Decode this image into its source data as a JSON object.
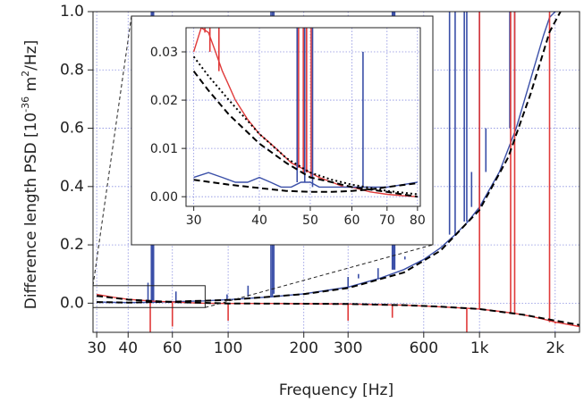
{
  "chart_data": [
    {
      "type": "line",
      "panel": "main",
      "xscale": "log",
      "xlim": [
        29,
        2500
      ],
      "ylim": [
        -0.1,
        1.0
      ],
      "xlabel": "Frequency [Hz]",
      "ylabel": {
        "prefix": "Difference length PSD [10",
        "exp1": "-36",
        "mid": " m",
        "exp2": "2",
        "suffix": "/Hz]"
      },
      "xticks": [
        {
          "value": 30,
          "label": "30"
        },
        {
          "value": 40,
          "label": "40"
        },
        {
          "value": 60,
          "label": "60"
        },
        {
          "value": 100,
          "label": "100"
        },
        {
          "value": 200,
          "label": "200"
        },
        {
          "value": 300,
          "label": "300"
        },
        {
          "value": 600,
          "label": "600"
        },
        {
          "value": 1000,
          "label": "1k"
        },
        {
          "value": 2000,
          "label": "2k"
        }
      ],
      "yticks": [
        {
          "value": 0.0,
          "label": "0.0"
        },
        {
          "value": 0.2,
          "label": "0.2"
        },
        {
          "value": 0.4,
          "label": "0.4"
        },
        {
          "value": 0.6,
          "label": "0.6"
        },
        {
          "value": 0.8,
          "label": "0.8"
        },
        {
          "value": 1.0,
          "label": "1.0"
        }
      ],
      "grid": true,
      "series": [
        {
          "color": "#3a4fa8",
          "style": "solid",
          "x": [
            30,
            35,
            40,
            50,
            60,
            80,
            100,
            150,
            200,
            300,
            400,
            500,
            600,
            700,
            800,
            900,
            1000,
            1200,
            1400,
            1600,
            1800,
            1900,
            2000
          ],
          "y": [
            0.004,
            0.003,
            0.002,
            0.003,
            0.005,
            0.008,
            0.012,
            0.022,
            0.032,
            0.055,
            0.085,
            0.115,
            0.15,
            0.19,
            0.235,
            0.28,
            0.33,
            0.45,
            0.6,
            0.77,
            0.92,
            0.98,
            1.0
          ],
          "spikes": [
            {
              "x": 48,
              "y": 0.07
            },
            {
              "x": 49.5,
              "y": 1.0
            },
            {
              "x": 50,
              "y": 1.0
            },
            {
              "x": 50.5,
              "y": 1.0
            },
            {
              "x": 62,
              "y": 0.04
            },
            {
              "x": 99,
              "y": 0.03
            },
            {
              "x": 120,
              "y": 0.06
            },
            {
              "x": 148,
              "y": 1.0
            },
            {
              "x": 150,
              "y": 1.0
            },
            {
              "x": 152,
              "y": 1.0
            },
            {
              "x": 300,
              "y": 0.09
            },
            {
              "x": 330,
              "y": 0.1
            },
            {
              "x": 395,
              "y": 0.12
            },
            {
              "x": 450,
              "y": 1.0
            },
            {
              "x": 455,
              "y": 1.0
            },
            {
              "x": 460,
              "y": 1.0
            },
            {
              "x": 505,
              "y": 0.16
            },
            {
              "x": 760,
              "y": 1.0
            },
            {
              "x": 800,
              "y": 1.0
            },
            {
              "x": 870,
              "y": 1.0
            },
            {
              "x": 890,
              "y": 1.0
            },
            {
              "x": 930,
              "y": 0.45
            },
            {
              "x": 1000,
              "y": 1.0
            },
            {
              "x": 1060,
              "y": 0.6
            },
            {
              "x": 1320,
              "y": 1.0
            },
            {
              "x": 1380,
              "y": 1.0
            }
          ]
        },
        {
          "color": "#e03a3a",
          "style": "solid",
          "x": [
            30,
            35,
            40,
            50,
            60,
            80,
            100,
            150,
            200,
            300,
            400,
            500,
            600,
            800,
            1000,
            1200,
            1400,
            1600,
            1800,
            2000,
            2500
          ],
          "y": [
            0.03,
            0.02,
            0.013,
            0.007,
            0.004,
            0.0,
            -0.001,
            -0.001,
            -0.002,
            -0.003,
            -0.005,
            -0.007,
            -0.01,
            -0.015,
            -0.02,
            -0.028,
            -0.036,
            -0.045,
            -0.055,
            -0.065,
            -0.08
          ],
          "spikes": [
            {
              "x": 49,
              "y": -0.1
            },
            {
              "x": 60,
              "y": -0.08
            },
            {
              "x": 100,
              "y": -0.06
            },
            {
              "x": 300,
              "y": -0.06
            },
            {
              "x": 450,
              "y": -0.05
            },
            {
              "x": 1000,
              "y": 1.0
            },
            {
              "x": 1330,
              "y": 1.0
            },
            {
              "x": 1380,
              "y": 1.0
            },
            {
              "x": 1900,
              "y": 1.0
            },
            {
              "x": 890,
              "y": -0.1
            },
            {
              "x": 2000,
              "y": -0.07
            }
          ]
        },
        {
          "color": "#000000",
          "style": "dashed",
          "x": [
            30,
            40,
            60,
            100,
            200,
            300,
            500,
            700,
            1000,
            1300,
            1600,
            1900,
            2100
          ],
          "y": [
            0.004,
            0.002,
            0.005,
            0.011,
            0.031,
            0.052,
            0.105,
            0.18,
            0.32,
            0.5,
            0.72,
            0.93,
            1.0
          ]
        },
        {
          "color": "#000000",
          "style": "dashed",
          "x": [
            30,
            40,
            60,
            100,
            200,
            300,
            500,
            700,
            1000,
            1500,
            2000,
            2500
          ],
          "y": [
            0.025,
            0.012,
            0.004,
            -0.001,
            -0.002,
            -0.003,
            -0.007,
            -0.012,
            -0.02,
            -0.04,
            -0.06,
            -0.075
          ]
        }
      ]
    },
    {
      "type": "line",
      "panel": "inset",
      "xscale": "log",
      "xlim": [
        29,
        81
      ],
      "ylim": [
        -0.002,
        0.035
      ],
      "xticks": [
        {
          "value": 30,
          "label": "30"
        },
        {
          "value": 40,
          "label": "40"
        },
        {
          "value": 50,
          "label": "50"
        },
        {
          "value": 60,
          "label": "60"
        },
        {
          "value": 70,
          "label": "70"
        },
        {
          "value": 80,
          "label": "80"
        }
      ],
      "yticks": [
        {
          "value": 0.0,
          "label": "0.00"
        },
        {
          "value": 0.01,
          "label": "0.01"
        },
        {
          "value": 0.02,
          "label": "0.02"
        },
        {
          "value": 0.03,
          "label": "0.03"
        }
      ],
      "grid": true,
      "series": [
        {
          "color": "#e03a3a",
          "style": "solid",
          "x": [
            30,
            31,
            32,
            33,
            34,
            35,
            36,
            38,
            40,
            42,
            44,
            46,
            48,
            50,
            52,
            55,
            58,
            60,
            65,
            70,
            75,
            80
          ],
          "y": [
            0.03,
            0.035,
            0.034,
            0.03,
            0.026,
            0.023,
            0.02,
            0.016,
            0.013,
            0.011,
            0.009,
            0.007,
            0.006,
            0.005,
            0.004,
            0.003,
            0.002,
            0.002,
            0.001,
            0.0005,
            0.0002,
            0.0
          ],
          "spikes": [
            {
              "x": 30.5,
              "y": 0.035
            },
            {
              "x": 31.5,
              "y": 0.035
            },
            {
              "x": 32.2,
              "y": 0.035
            },
            {
              "x": 33.5,
              "y": 0.035
            },
            {
              "x": 47.5,
              "y": 0.035
            },
            {
              "x": 48.5,
              "y": 0.035
            },
            {
              "x": 49.2,
              "y": 0.035
            },
            {
              "x": 50.2,
              "y": 0.035
            }
          ]
        },
        {
          "color": "#3a4fa8",
          "style": "solid",
          "x": [
            30,
            32,
            34,
            36,
            38,
            40,
            42,
            44,
            46,
            48,
            50,
            52,
            55,
            58,
            60,
            63,
            66,
            70,
            75,
            80
          ],
          "y": [
            0.004,
            0.005,
            0.004,
            0.003,
            0.003,
            0.004,
            0.003,
            0.002,
            0.002,
            0.003,
            0.003,
            0.002,
            0.002,
            0.002,
            0.002,
            0.002,
            0.002,
            0.002,
            0.0025,
            0.003
          ],
          "spikes": [
            {
              "x": 47.2,
              "y": 0.035
            },
            {
              "x": 48.8,
              "y": 0.035
            },
            {
              "x": 50.5,
              "y": 0.035
            },
            {
              "x": 63,
              "y": 0.03
            }
          ]
        },
        {
          "color": "#000000",
          "style": "dashed",
          "x": [
            30,
            32,
            35,
            40,
            45,
            50,
            55,
            60,
            70,
            80
          ],
          "y": [
            0.026,
            0.022,
            0.017,
            0.011,
            0.007,
            0.004,
            0.003,
            0.002,
            0.001,
            0.0
          ]
        },
        {
          "color": "#000000",
          "style": "dotted",
          "x": [
            30,
            32,
            35,
            40,
            45,
            50,
            55,
            60,
            70,
            80
          ],
          "y": [
            0.029,
            0.025,
            0.02,
            0.013,
            0.008,
            0.005,
            0.0035,
            0.0025,
            0.0012,
            0.0005
          ]
        },
        {
          "color": "#000000",
          "style": "dashed",
          "x": [
            30,
            35,
            40,
            45,
            50,
            55,
            60,
            65,
            70,
            80
          ],
          "y": [
            0.0035,
            0.0025,
            0.0018,
            0.0012,
            0.001,
            0.001,
            0.0012,
            0.0015,
            0.002,
            0.0028
          ]
        }
      ]
    }
  ]
}
